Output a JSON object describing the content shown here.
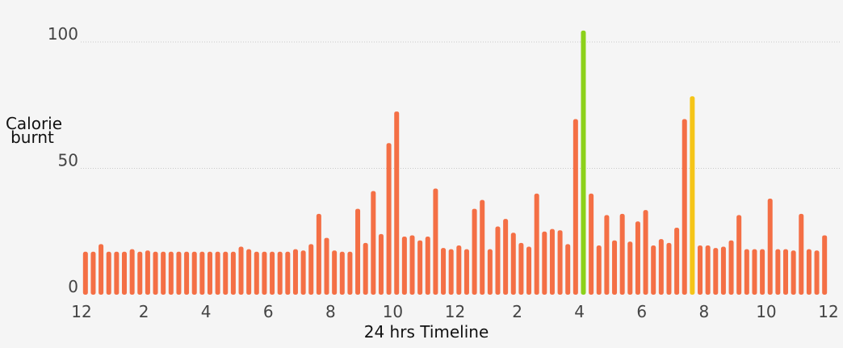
{
  "chart_data": {
    "type": "bar",
    "title": "",
    "ylabel_lines": [
      "Calorie",
      "burnt"
    ],
    "xlabel": "24 hrs Timeline",
    "ylim": [
      0,
      100
    ],
    "yticks": [
      0,
      50,
      100
    ],
    "xlim": [
      0,
      24
    ],
    "xtick_hours": [
      0,
      2,
      4,
      6,
      8,
      10,
      12,
      14,
      16,
      18,
      20,
      22,
      24
    ],
    "xtick_labels": [
      "12",
      "2",
      "4",
      "6",
      "8",
      "10",
      "12",
      "2",
      "4",
      "6",
      "8",
      "10",
      "12"
    ],
    "grid": "horizontal dotted",
    "default_color": "#f46f45",
    "colors": {
      "normal": "#f46f45",
      "peak": "#8cd11a",
      "highlight": "#f5c518"
    },
    "series": [
      {
        "values": [
          17,
          17,
          20,
          17,
          17,
          17,
          18,
          17,
          17.5,
          17,
          17,
          17,
          17,
          17,
          17,
          17,
          17,
          17,
          17,
          17,
          19,
          18,
          17,
          17,
          17,
          17,
          17,
          18,
          17.5,
          20,
          32,
          22.5,
          17.5,
          17,
          17,
          34,
          20.5,
          41,
          24,
          60,
          72.5,
          23,
          23.5,
          21.5,
          23,
          42,
          18.5,
          18,
          19.5,
          18,
          34,
          37.5,
          18,
          27,
          30,
          24.5,
          20.5,
          19,
          40,
          25,
          26,
          25.5,
          20,
          69.5,
          104.5,
          40,
          19.5,
          31.5,
          21.5,
          32,
          21,
          29,
          33.5,
          19.5,
          22,
          20.5,
          26.5,
          69.5,
          78.5,
          19.5,
          19.5,
          18.5,
          19,
          21.5,
          31.5,
          18,
          18,
          18,
          38,
          18,
          18,
          17.5,
          32,
          18,
          17.5,
          23.5
        ],
        "colors": {
          "64": "#8cd11a",
          "78": "#f5c518"
        }
      }
    ]
  }
}
